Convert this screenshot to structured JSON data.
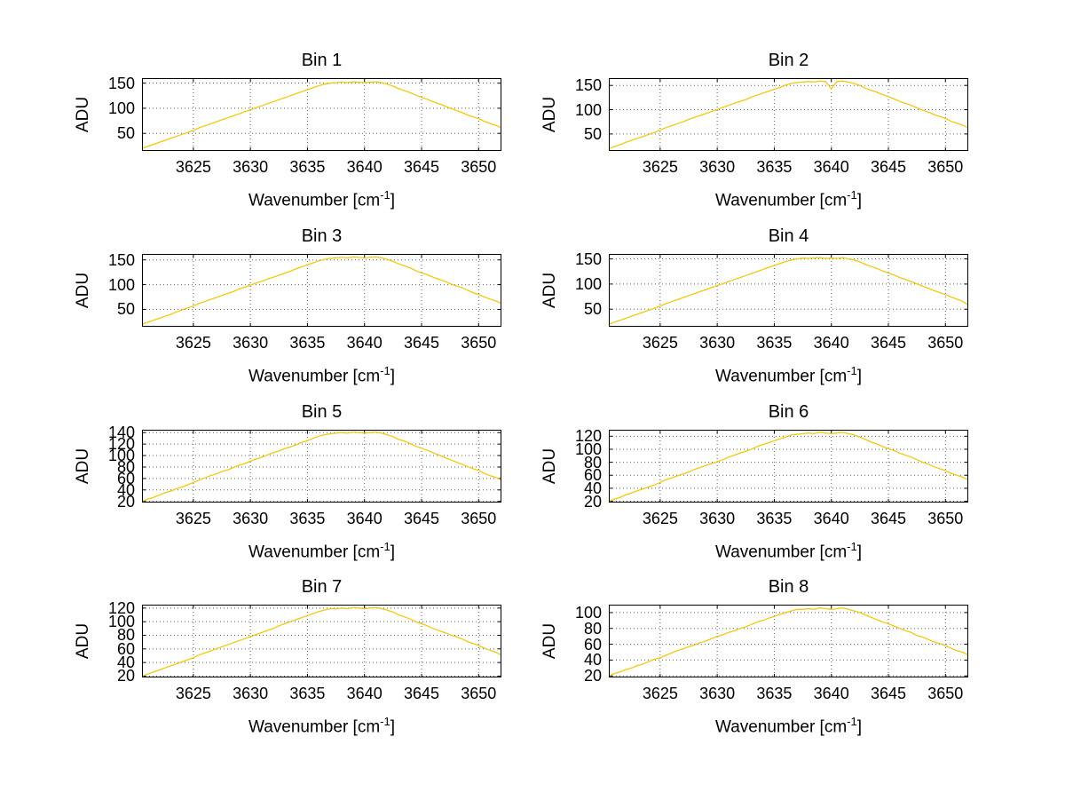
{
  "figure": {
    "background": "#ffffff",
    "line_color": "#f2c80f",
    "grid_color": "#606060",
    "axis_color": "#000000"
  },
  "labels": {
    "x_main": "Wavenumber [cm",
    "x_sup": "-1",
    "x_close": "]",
    "y": "ADU"
  },
  "chart_data": [
    {
      "type": "line",
      "title": "Bin 1",
      "xlabel": "Wavenumber [cm^-1]",
      "ylabel": "ADU",
      "xlim": [
        3620.5,
        3652
      ],
      "ylim": [
        15,
        160
      ],
      "xticks": [
        3625,
        3630,
        3635,
        3640,
        3645,
        3650
      ],
      "yticks": [
        50,
        100,
        150
      ],
      "x_start": 3620.5,
      "x_step": 0.5,
      "values": [
        20,
        24,
        28,
        32,
        36,
        40,
        44,
        48,
        52,
        56,
        61,
        65,
        69,
        73,
        77,
        81,
        85,
        89,
        93,
        97,
        101,
        105,
        109,
        113,
        117,
        121,
        125,
        129,
        133,
        137,
        141,
        145,
        148,
        150,
        151,
        152,
        151,
        153,
        152,
        151,
        152,
        153,
        151,
        148,
        144,
        139,
        135,
        131,
        126,
        122,
        118,
        113,
        109,
        105,
        100,
        96,
        92,
        87,
        83,
        79,
        74,
        70,
        66,
        61
      ]
    },
    {
      "type": "line",
      "title": "Bin 2",
      "xlabel": "Wavenumber [cm^-1]",
      "ylabel": "ADU",
      "xlim": [
        3620.5,
        3652
      ],
      "ylim": [
        15,
        165
      ],
      "xticks": [
        3625,
        3630,
        3635,
        3640,
        3645,
        3650
      ],
      "yticks": [
        50,
        100,
        150
      ],
      "x_start": 3620.5,
      "x_step": 0.5,
      "values": [
        20,
        24,
        28,
        33,
        37,
        41,
        45,
        49,
        53,
        58,
        63,
        67,
        71,
        75,
        80,
        84,
        88,
        92,
        96,
        100,
        105,
        109,
        113,
        117,
        121,
        126,
        130,
        134,
        138,
        142,
        146,
        151,
        154,
        156,
        157,
        158,
        157,
        159,
        158,
        143,
        158,
        159,
        157,
        154,
        150,
        144,
        140,
        136,
        131,
        127,
        122,
        117,
        113,
        109,
        104,
        99,
        95,
        90,
        86,
        82,
        76,
        72,
        68,
        63
      ]
    },
    {
      "type": "line",
      "title": "Bin 3",
      "xlabel": "Wavenumber [cm^-1]",
      "ylabel": "ADU",
      "xlim": [
        3620.5,
        3652
      ],
      "ylim": [
        15,
        162
      ],
      "xticks": [
        3625,
        3630,
        3635,
        3640,
        3645,
        3650
      ],
      "yticks": [
        50,
        100,
        150
      ],
      "x_start": 3620.5,
      "x_step": 0.5,
      "values": [
        20,
        24,
        28,
        32,
        36,
        40,
        45,
        49,
        53,
        57,
        62,
        66,
        70,
        74,
        78,
        82,
        86,
        91,
        95,
        99,
        103,
        107,
        111,
        115,
        119,
        123,
        127,
        132,
        136,
        140,
        144,
        148,
        151,
        153,
        154,
        155,
        154,
        156,
        155,
        154,
        155,
        156,
        154,
        151,
        147,
        142,
        138,
        134,
        128,
        124,
        120,
        115,
        111,
        107,
        102,
        98,
        94,
        89,
        84,
        80,
        75,
        71,
        67,
        62
      ]
    },
    {
      "type": "line",
      "title": "Bin 4",
      "xlabel": "Wavenumber [cm^-1]",
      "ylabel": "ADU",
      "xlim": [
        3620.5,
        3652
      ],
      "ylim": [
        15,
        160
      ],
      "xticks": [
        3625,
        3630,
        3635,
        3640,
        3645,
        3650
      ],
      "yticks": [
        50,
        100,
        150
      ],
      "x_start": 3620.5,
      "x_step": 0.5,
      "values": [
        20,
        24,
        28,
        32,
        36,
        40,
        44,
        48,
        52,
        56,
        61,
        65,
        69,
        73,
        77,
        81,
        85,
        89,
        93,
        97,
        101,
        105,
        109,
        113,
        117,
        121,
        125,
        129,
        133,
        137,
        141,
        145,
        148,
        150,
        152,
        151,
        152,
        153,
        151,
        152,
        151,
        153,
        150,
        148,
        144,
        139,
        135,
        131,
        126,
        122,
        118,
        113,
        109,
        105,
        100,
        96,
        92,
        87,
        83,
        79,
        74,
        70,
        66,
        58
      ]
    },
    {
      "type": "line",
      "title": "Bin 5",
      "xlabel": "Wavenumber [cm^-1]",
      "ylabel": "ADU",
      "xlim": [
        3620.5,
        3652
      ],
      "ylim": [
        18,
        145
      ],
      "xticks": [
        3625,
        3630,
        3635,
        3640,
        3645,
        3650
      ],
      "yticks": [
        20,
        40,
        60,
        80,
        100,
        120,
        140
      ],
      "x_start": 3620.5,
      "x_step": 0.5,
      "values": [
        20,
        24,
        27,
        31,
        35,
        38,
        42,
        45,
        49,
        53,
        57,
        61,
        65,
        68,
        72,
        75,
        79,
        83,
        86,
        90,
        94,
        97,
        101,
        105,
        108,
        112,
        115,
        119,
        123,
        126,
        130,
        134,
        136,
        138,
        139,
        140,
        139,
        141,
        140,
        139,
        140,
        141,
        139,
        136,
        133,
        128,
        125,
        121,
        116,
        113,
        109,
        105,
        101,
        97,
        93,
        89,
        85,
        81,
        77,
        74,
        69,
        65,
        62,
        57
      ]
    },
    {
      "type": "line",
      "title": "Bin 6",
      "xlabel": "Wavenumber [cm^-1]",
      "ylabel": "ADU",
      "xlim": [
        3620.5,
        3652
      ],
      "ylim": [
        18,
        130
      ],
      "xticks": [
        3625,
        3630,
        3635,
        3640,
        3645,
        3650
      ],
      "yticks": [
        20,
        40,
        60,
        80,
        100,
        120
      ],
      "x_start": 3620.5,
      "x_step": 0.5,
      "values": [
        20,
        23,
        26,
        30,
        33,
        36,
        39,
        42,
        45,
        49,
        53,
        56,
        59,
        62,
        65,
        69,
        72,
        75,
        78,
        81,
        84,
        88,
        91,
        94,
        97,
        100,
        104,
        107,
        110,
        113,
        116,
        119,
        122,
        123,
        124,
        125,
        124,
        126,
        125,
        124,
        125,
        126,
        124,
        122,
        119,
        115,
        111,
        108,
        104,
        101,
        98,
        94,
        91,
        88,
        84,
        80,
        77,
        73,
        70,
        67,
        63,
        60,
        57,
        53
      ]
    },
    {
      "type": "line",
      "title": "Bin 7",
      "xlabel": "Wavenumber [cm^-1]",
      "ylabel": "ADU",
      "xlim": [
        3620.5,
        3652
      ],
      "ylim": [
        18,
        125
      ],
      "xticks": [
        3625,
        3630,
        3635,
        3640,
        3645,
        3650
      ],
      "yticks": [
        20,
        40,
        60,
        80,
        100,
        120
      ],
      "x_start": 3620.5,
      "x_step": 0.5,
      "values": [
        20,
        23,
        26,
        29,
        32,
        35,
        38,
        41,
        44,
        47,
        51,
        54,
        57,
        60,
        63,
        66,
        69,
        72,
        75,
        78,
        81,
        84,
        87,
        90,
        94,
        97,
        100,
        103,
        106,
        109,
        112,
        115,
        117,
        119,
        119,
        120,
        119,
        121,
        120,
        119,
        120,
        121,
        119,
        117,
        114,
        110,
        107,
        104,
        100,
        97,
        94,
        90,
        87,
        84,
        81,
        78,
        75,
        71,
        68,
        65,
        61,
        58,
        55,
        51
      ]
    },
    {
      "type": "line",
      "title": "Bin 8",
      "xlabel": "Wavenumber [cm^-1]",
      "ylabel": "ADU",
      "xlim": [
        3620.5,
        3652
      ],
      "ylim": [
        18,
        110
      ],
      "xticks": [
        3625,
        3630,
        3635,
        3640,
        3645,
        3650
      ],
      "yticks": [
        20,
        40,
        60,
        80,
        100
      ],
      "x_start": 3620.5,
      "x_step": 0.5,
      "values": [
        20,
        23,
        25,
        28,
        30,
        33,
        35,
        38,
        41,
        43,
        46,
        49,
        52,
        54,
        57,
        59,
        62,
        64,
        67,
        70,
        72,
        75,
        77,
        80,
        82,
        85,
        88,
        90,
        93,
        95,
        98,
        100,
        102,
        104,
        104,
        105,
        104,
        106,
        105,
        104,
        105,
        106,
        104,
        102,
        100,
        97,
        94,
        91,
        88,
        86,
        83,
        80,
        77,
        75,
        71,
        69,
        66,
        63,
        61,
        58,
        55,
        52,
        50,
        46
      ]
    }
  ]
}
